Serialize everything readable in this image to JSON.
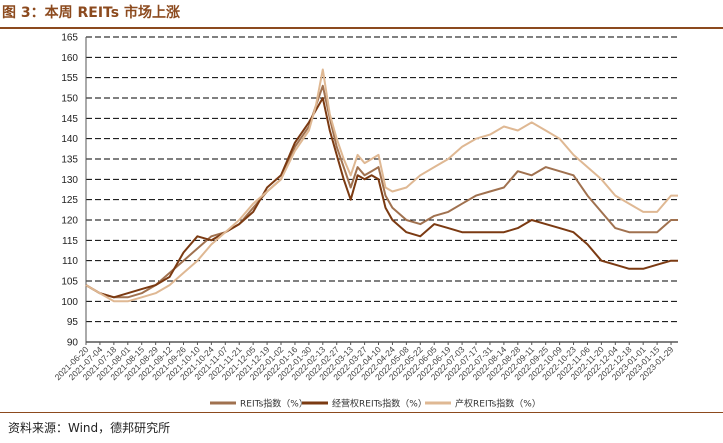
{
  "title": "图 3：本周 REITs 市场上涨",
  "source": "资料来源：Wind，德邦研究所",
  "chart_data": {
    "type": "line",
    "title": "",
    "xlabel": "",
    "ylabel": "",
    "ylim": [
      90,
      165
    ],
    "yticks": [
      90,
      95,
      100,
      105,
      110,
      115,
      120,
      125,
      130,
      135,
      140,
      145,
      150,
      155,
      160,
      165
    ],
    "grid": true,
    "legend_position": "bottom",
    "x_tick_labels": [
      "2021-06-20",
      "2021-07-04",
      "2021-07-18",
      "2021-08-01",
      "2021-08-15",
      "2021-08-29",
      "2021-09-12",
      "2021-09-26",
      "2021-10-10",
      "2021-10-24",
      "2021-11-07",
      "2021-11-21",
      "2021-12-05",
      "2021-12-19",
      "2022-01-02",
      "2022-01-16",
      "2022-01-30",
      "2022-02-13",
      "2022-02-27",
      "2022-03-13",
      "2022-03-27",
      "2022-04-10",
      "2022-04-24",
      "2022-05-08",
      "2022-05-22",
      "2022-06-05",
      "2022-06-19",
      "2022-07-03",
      "2022-07-17",
      "2022-07-31",
      "2022-08-14",
      "2022-08-28",
      "2022-09-11",
      "2022-09-25",
      "2022-10-09",
      "2022-10-23",
      "2022-11-06",
      "2022-11-20",
      "2022-12-04",
      "2022-12-18",
      "2023-01-01",
      "2023-01-15",
      "2023-01-29"
    ],
    "x": [
      "2021-06-20",
      "2021-07-04",
      "2021-07-18",
      "2021-08-01",
      "2021-08-15",
      "2021-08-29",
      "2021-09-12",
      "2021-09-26",
      "2021-10-10",
      "2021-10-24",
      "2021-11-07",
      "2021-11-21",
      "2021-12-05",
      "2021-12-19",
      "2022-01-02",
      "2022-01-16",
      "2022-01-30",
      "2022-02-06",
      "2022-02-13",
      "2022-02-20",
      "2022-02-27",
      "2022-03-06",
      "2022-03-13",
      "2022-03-20",
      "2022-03-27",
      "2022-04-03",
      "2022-04-10",
      "2022-04-17",
      "2022-04-24",
      "2022-05-08",
      "2022-05-22",
      "2022-06-05",
      "2022-06-19",
      "2022-07-03",
      "2022-07-17",
      "2022-07-31",
      "2022-08-14",
      "2022-08-28",
      "2022-09-11",
      "2022-09-25",
      "2022-10-09",
      "2022-10-23",
      "2022-11-06",
      "2022-11-20",
      "2022-12-04",
      "2022-12-18",
      "2023-01-01",
      "2023-01-15",
      "2023-01-29",
      "2023-02-05"
    ],
    "series": [
      {
        "name": "REITs指数（%）",
        "color": "#a0714f",
        "values": [
          104,
          102,
          101,
          101,
          102,
          104,
          107,
          110,
          113,
          116,
          117,
          119,
          123,
          127,
          130,
          138,
          143,
          148,
          153,
          145,
          138,
          133,
          128,
          133,
          131,
          132,
          133,
          126,
          123,
          120,
          119,
          121,
          122,
          124,
          126,
          127,
          128,
          132,
          131,
          133,
          132,
          131,
          126,
          122,
          118,
          117,
          117,
          117,
          120,
          120
        ]
      },
      {
        "name": "经营权REITs指数（%）",
        "color": "#7b3a12",
        "values": [
          104,
          102,
          101,
          102,
          103,
          104,
          106,
          112,
          116,
          115,
          117,
          119,
          122,
          128,
          131,
          139,
          144,
          147,
          150,
          142,
          136,
          130,
          125,
          131,
          130,
          131,
          130,
          123,
          120,
          117,
          116,
          119,
          118,
          117,
          117,
          117,
          117,
          118,
          120,
          119,
          118,
          117,
          114,
          110,
          109,
          108,
          108,
          109,
          110,
          110
        ]
      },
      {
        "name": "产权REITs指数（%）",
        "color": "#dfb893",
        "values": [
          104,
          102,
          100,
          100,
          101,
          102,
          104,
          107,
          110,
          114,
          117,
          120,
          124,
          127,
          130,
          137,
          142,
          148,
          157,
          146,
          140,
          135,
          131,
          136,
          134,
          135,
          136,
          128,
          127,
          128,
          131,
          133,
          135,
          138,
          140,
          141,
          143,
          142,
          144,
          142,
          140,
          136,
          133,
          130,
          126,
          124,
          122,
          122,
          126,
          126
        ]
      }
    ]
  }
}
